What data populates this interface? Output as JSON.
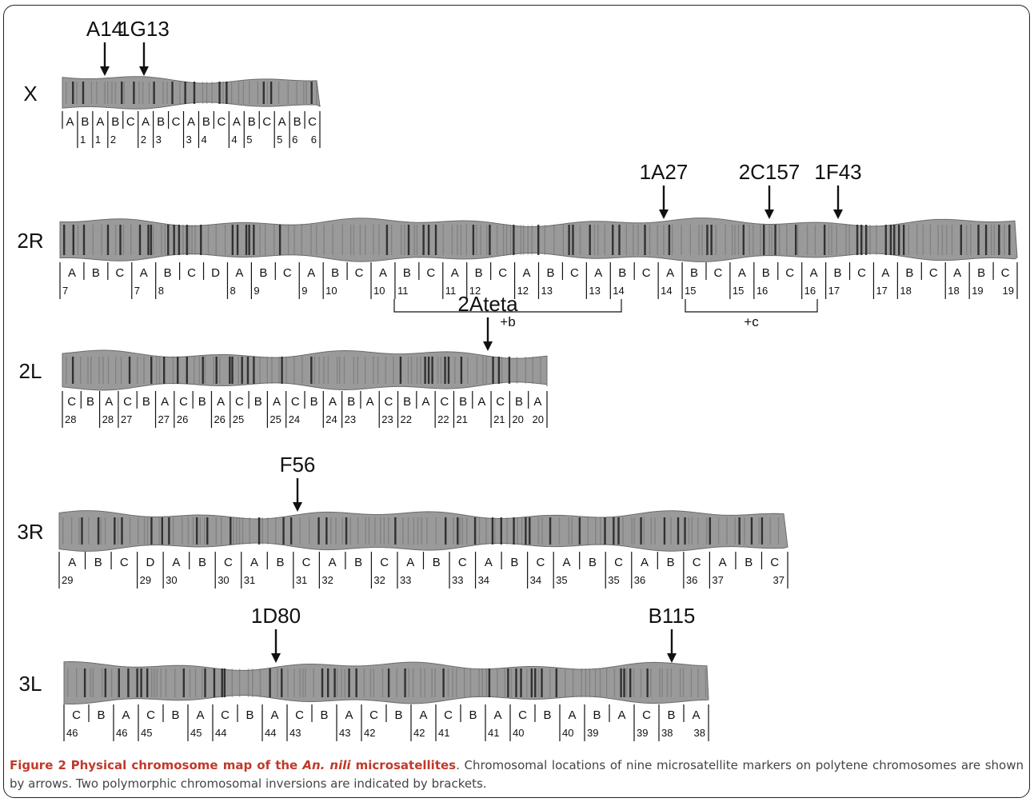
{
  "figure": {
    "caption": {
      "label": "Figure 2",
      "title_prefix": "Physical chromosome map of the ",
      "title_species": "An. nili",
      "title_suffix": " microsatellites",
      "text": ". Chromosomal locations of nine microsatellite markers on polytene chromosomes are shown by arrows. Two polymorphic chromosomal inversions are indicated by brackets."
    },
    "chromosomes": [
      {
        "name": "X",
        "row": 0,
        "start": 78,
        "end": 400,
        "segments": [
          {
            "letter": "A",
            "boundary": ""
          },
          {
            "letter": "B",
            "boundary": "1"
          },
          {
            "letter": "A",
            "boundary": "1"
          },
          {
            "letter": "B",
            "boundary": "2"
          },
          {
            "letter": "C",
            "boundary": ""
          },
          {
            "letter": "A",
            "boundary": "2"
          },
          {
            "letter": "B",
            "boundary": "3"
          },
          {
            "letter": "C",
            "boundary": ""
          },
          {
            "letter": "A",
            "boundary": "3"
          },
          {
            "letter": "B",
            "boundary": "4"
          },
          {
            "letter": "C",
            "boundary": ""
          },
          {
            "letter": "A",
            "boundary": "4"
          },
          {
            "letter": "B",
            "boundary": "5"
          },
          {
            "letter": "C",
            "boundary": ""
          },
          {
            "letter": "A",
            "boundary": "5"
          },
          {
            "letter": "B",
            "boundary": "6"
          },
          {
            "letter": "C",
            "boundary": ""
          }
        ],
        "end_label": "6",
        "markers": [
          {
            "label": "A14",
            "pos": 131
          },
          {
            "label": "1G13",
            "pos": 180
          }
        ],
        "brackets": []
      },
      {
        "name": "2R",
        "row": 1,
        "start": 75,
        "end": 1272,
        "segments": [
          {
            "letter": "A",
            "boundary": "7"
          },
          {
            "letter": "B",
            "boundary": ""
          },
          {
            "letter": "C",
            "boundary": ""
          },
          {
            "letter": "A",
            "boundary": "7"
          },
          {
            "letter": "B",
            "boundary": "8"
          },
          {
            "letter": "C",
            "boundary": ""
          },
          {
            "letter": "D",
            "boundary": ""
          },
          {
            "letter": "A",
            "boundary": "8"
          },
          {
            "letter": "B",
            "boundary": "9"
          },
          {
            "letter": "C",
            "boundary": ""
          },
          {
            "letter": "A",
            "boundary": "9"
          },
          {
            "letter": "B",
            "boundary": "10"
          },
          {
            "letter": "C",
            "boundary": ""
          },
          {
            "letter": "A",
            "boundary": "10"
          },
          {
            "letter": "B",
            "boundary": "11"
          },
          {
            "letter": "C",
            "boundary": ""
          },
          {
            "letter": "A",
            "boundary": "11"
          },
          {
            "letter": "B",
            "boundary": "12"
          },
          {
            "letter": "C",
            "boundary": ""
          },
          {
            "letter": "A",
            "boundary": "12"
          },
          {
            "letter": "B",
            "boundary": "13"
          },
          {
            "letter": "C",
            "boundary": ""
          },
          {
            "letter": "A",
            "boundary": "13"
          },
          {
            "letter": "B",
            "boundary": "14"
          },
          {
            "letter": "C",
            "boundary": ""
          },
          {
            "letter": "A",
            "boundary": "14"
          },
          {
            "letter": "B",
            "boundary": "15"
          },
          {
            "letter": "C",
            "boundary": ""
          },
          {
            "letter": "A",
            "boundary": "15"
          },
          {
            "letter": "B",
            "boundary": "16"
          },
          {
            "letter": "C",
            "boundary": ""
          },
          {
            "letter": "A",
            "boundary": "16"
          },
          {
            "letter": "B",
            "boundary": "17"
          },
          {
            "letter": "C",
            "boundary": ""
          },
          {
            "letter": "A",
            "boundary": "17"
          },
          {
            "letter": "B",
            "boundary": "18"
          },
          {
            "letter": "C",
            "boundary": ""
          },
          {
            "letter": "A",
            "boundary": "18"
          },
          {
            "letter": "B",
            "boundary": "19"
          },
          {
            "letter": "C",
            "boundary": ""
          }
        ],
        "end_label": "19",
        "markers": [
          {
            "label": "1A27",
            "pos": 830
          },
          {
            "label": "2C157",
            "pos": 962
          },
          {
            "label": "1F43",
            "pos": 1048
          }
        ],
        "brackets": [
          {
            "label": "+b",
            "from": 493,
            "to": 777
          },
          {
            "label": "+c",
            "from": 857,
            "to": 1022
          }
        ]
      },
      {
        "name": "2L",
        "row": 2,
        "start": 78,
        "end": 684,
        "segments": [
          {
            "letter": "C",
            "boundary": "28"
          },
          {
            "letter": "B",
            "boundary": ""
          },
          {
            "letter": "A",
            "boundary": "28"
          },
          {
            "letter": "C",
            "boundary": "27"
          },
          {
            "letter": "B",
            "boundary": ""
          },
          {
            "letter": "A",
            "boundary": "27"
          },
          {
            "letter": "C",
            "boundary": "26"
          },
          {
            "letter": "B",
            "boundary": ""
          },
          {
            "letter": "A",
            "boundary": "26"
          },
          {
            "letter": "C",
            "boundary": "25"
          },
          {
            "letter": "B",
            "boundary": ""
          },
          {
            "letter": "A",
            "boundary": "25"
          },
          {
            "letter": "C",
            "boundary": "24"
          },
          {
            "letter": "B",
            "boundary": ""
          },
          {
            "letter": "A",
            "boundary": "24"
          },
          {
            "letter": "B",
            "boundary": "23"
          },
          {
            "letter": "A",
            "boundary": ""
          },
          {
            "letter": "C",
            "boundary": "23"
          },
          {
            "letter": "B",
            "boundary": "22"
          },
          {
            "letter": "A",
            "boundary": ""
          },
          {
            "letter": "C",
            "boundary": "22"
          },
          {
            "letter": "B",
            "boundary": "21"
          },
          {
            "letter": "A",
            "boundary": ""
          },
          {
            "letter": "C",
            "boundary": "21"
          },
          {
            "letter": "B",
            "boundary": "20"
          },
          {
            "letter": "A",
            "boundary": ""
          }
        ],
        "end_label": "20",
        "markers": [
          {
            "label": "2Ateta",
            "pos": 610
          }
        ],
        "brackets": []
      },
      {
        "name": "3R",
        "row": 3,
        "start": 74,
        "end": 985,
        "segments": [
          {
            "letter": "A",
            "boundary": "29"
          },
          {
            "letter": "B",
            "boundary": ""
          },
          {
            "letter": "C",
            "boundary": ""
          },
          {
            "letter": "D",
            "boundary": "29"
          },
          {
            "letter": "A",
            "boundary": "30"
          },
          {
            "letter": "B",
            "boundary": ""
          },
          {
            "letter": "C",
            "boundary": "30"
          },
          {
            "letter": "A",
            "boundary": "31"
          },
          {
            "letter": "B",
            "boundary": ""
          },
          {
            "letter": "C",
            "boundary": "31"
          },
          {
            "letter": "A",
            "boundary": "32"
          },
          {
            "letter": "B",
            "boundary": ""
          },
          {
            "letter": "C",
            "boundary": "32"
          },
          {
            "letter": "A",
            "boundary": "33"
          },
          {
            "letter": "B",
            "boundary": ""
          },
          {
            "letter": "C",
            "boundary": "33"
          },
          {
            "letter": "A",
            "boundary": "34"
          },
          {
            "letter": "B",
            "boundary": ""
          },
          {
            "letter": "C",
            "boundary": "34"
          },
          {
            "letter": "A",
            "boundary": "35"
          },
          {
            "letter": "B",
            "boundary": ""
          },
          {
            "letter": "C",
            "boundary": "35"
          },
          {
            "letter": "A",
            "boundary": "36"
          },
          {
            "letter": "B",
            "boundary": ""
          },
          {
            "letter": "C",
            "boundary": "36"
          },
          {
            "letter": "A",
            "boundary": "37"
          },
          {
            "letter": "B",
            "boundary": ""
          },
          {
            "letter": "C",
            "boundary": ""
          }
        ],
        "end_label": "37",
        "markers": [
          {
            "label": "F56",
            "pos": 372
          }
        ],
        "brackets": []
      },
      {
        "name": "3L",
        "row": 4,
        "start": 80,
        "end": 886,
        "segments": [
          {
            "letter": "C",
            "boundary": "46"
          },
          {
            "letter": "B",
            "boundary": ""
          },
          {
            "letter": "A",
            "boundary": "46"
          },
          {
            "letter": "C",
            "boundary": "45"
          },
          {
            "letter": "B",
            "boundary": ""
          },
          {
            "letter": "A",
            "boundary": "45"
          },
          {
            "letter": "C",
            "boundary": "44"
          },
          {
            "letter": "B",
            "boundary": ""
          },
          {
            "letter": "A",
            "boundary": "44"
          },
          {
            "letter": "C",
            "boundary": "43"
          },
          {
            "letter": "B",
            "boundary": ""
          },
          {
            "letter": "A",
            "boundary": "43"
          },
          {
            "letter": "C",
            "boundary": "42"
          },
          {
            "letter": "B",
            "boundary": ""
          },
          {
            "letter": "A",
            "boundary": "42"
          },
          {
            "letter": "C",
            "boundary": "41"
          },
          {
            "letter": "B",
            "boundary": ""
          },
          {
            "letter": "A",
            "boundary": "41"
          },
          {
            "letter": "C",
            "boundary": "40"
          },
          {
            "letter": "B",
            "boundary": ""
          },
          {
            "letter": "A",
            "boundary": "40"
          },
          {
            "letter": "B",
            "boundary": "39"
          },
          {
            "letter": "A",
            "boundary": ""
          },
          {
            "letter": "C",
            "boundary": "39"
          },
          {
            "letter": "B",
            "boundary": "38"
          },
          {
            "letter": "A",
            "boundary": ""
          }
        ],
        "end_label": "38",
        "markers": [
          {
            "label": "1D80",
            "pos": 345
          },
          {
            "label": "B115",
            "pos": 840
          }
        ],
        "brackets": []
      }
    ]
  },
  "colors": {
    "chromosome_fill": "#9a9a9a",
    "band_dark": "#1e1e1e",
    "band_mid": "#5a5a5a",
    "ink": "#111111",
    "caption_bold": "#c0392b",
    "caption_text": "#444444"
  }
}
